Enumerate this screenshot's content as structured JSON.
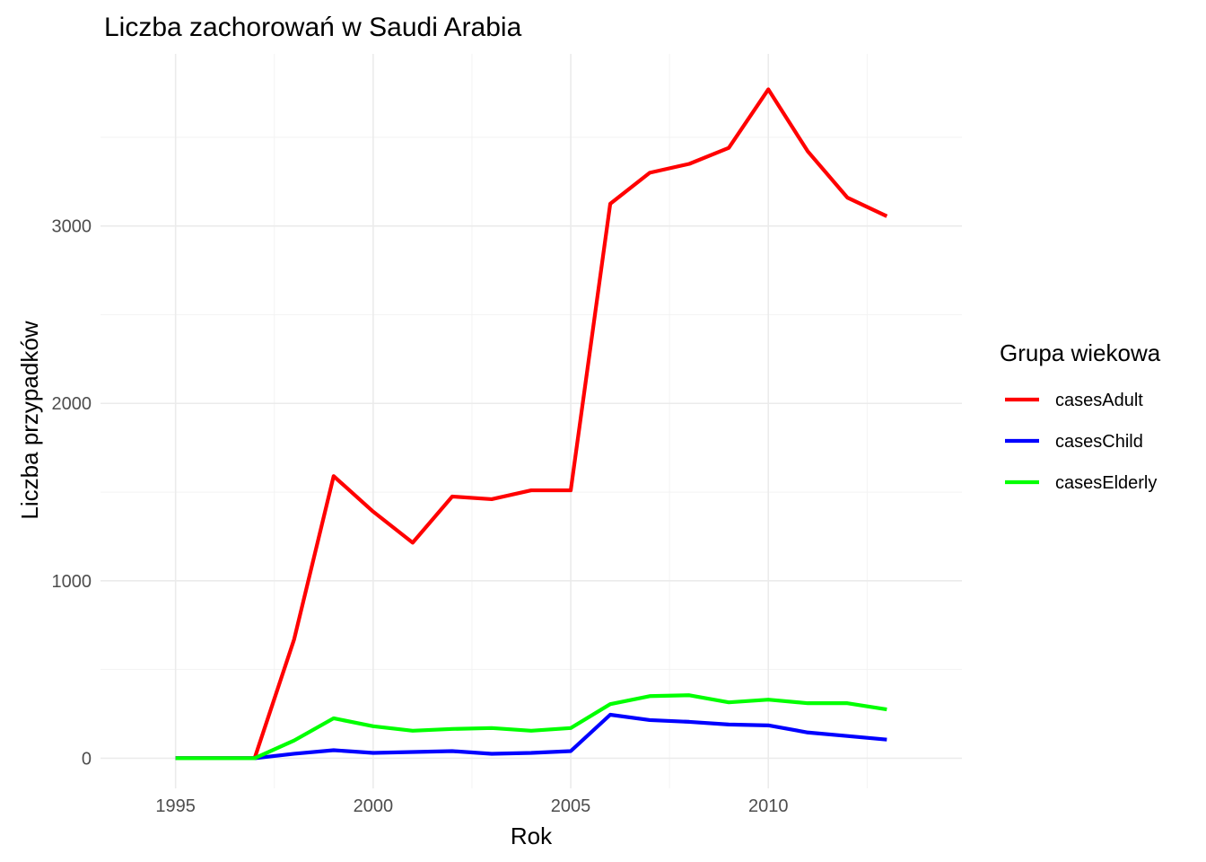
{
  "chart_data": {
    "type": "line",
    "title": "Liczba zachorowań w Saudi Arabia",
    "xlabel": "Rok",
    "ylabel": "Liczba przypadków",
    "x": [
      1995,
      1996,
      1997,
      1998,
      1999,
      2000,
      2001,
      2002,
      2003,
      2004,
      2005,
      2006,
      2007,
      2008,
      2009,
      2010,
      2011,
      2012,
      2013
    ],
    "xlim": [
      1993.1,
      2014.9
    ],
    "ylim": [
      -170,
      3970
    ],
    "x_ticks": [
      1995,
      2000,
      2005,
      2010
    ],
    "x_tick_labels": [
      "1995",
      "2000",
      "2005",
      "2010"
    ],
    "x_minor_ticks": [
      1997.5,
      2002.5,
      2007.5,
      2012.5
    ],
    "y_ticks": [
      0,
      1000,
      2000,
      3000
    ],
    "y_tick_labels": [
      "0",
      "1000",
      "2000",
      "3000"
    ],
    "y_minor_ticks": [
      500,
      1500,
      2500,
      3500
    ],
    "grid": true,
    "legend": {
      "title": "Grupa wiekowa",
      "position": "right"
    },
    "series": [
      {
        "name": "casesAdult",
        "color": "#ff0000",
        "values": [
          0,
          0,
          0,
          670,
          1590,
          1390,
          1215,
          1475,
          1460,
          1510,
          1510,
          3125,
          3300,
          3350,
          3440,
          3770,
          3420,
          3160,
          3055
        ]
      },
      {
        "name": "casesChild",
        "color": "#0000ff",
        "values": [
          0,
          0,
          0,
          25,
          45,
          30,
          35,
          40,
          25,
          30,
          40,
          245,
          215,
          205,
          190,
          185,
          145,
          125,
          105
        ]
      },
      {
        "name": "casesElderly",
        "color": "#00ff00",
        "values": [
          0,
          0,
          0,
          100,
          225,
          180,
          155,
          165,
          170,
          155,
          170,
          305,
          350,
          355,
          315,
          330,
          310,
          310,
          275
        ]
      }
    ]
  }
}
